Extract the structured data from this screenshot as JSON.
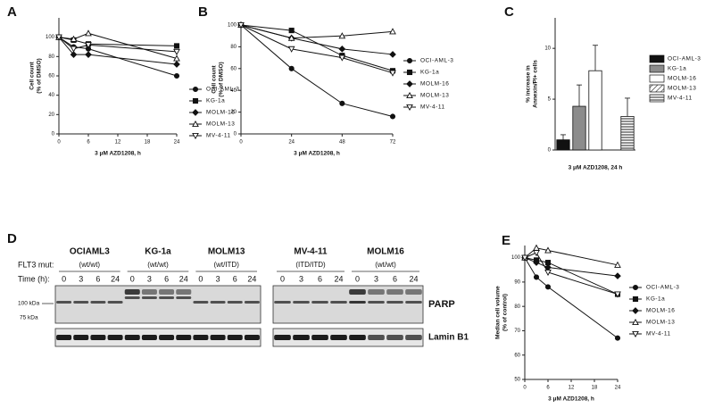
{
  "chart_data": [
    {
      "type": "line",
      "panel": "A",
      "ylabel": [
        "Cell count",
        "(% of DMSO)"
      ],
      "xlabel": "3 μM AZD1208, h",
      "x": [
        0,
        3,
        6,
        24
      ],
      "xlim": [
        0,
        24
      ],
      "xticks": [
        0,
        6,
        12,
        18,
        24
      ],
      "ylim": [
        0,
        120
      ],
      "yticks": [
        0,
        20,
        40,
        60,
        80,
        100
      ],
      "series": [
        {
          "name": "OCI-AML-3",
          "color": "#111111",
          "marker": "circle",
          "marker_fill": "#111111",
          "values": [
            100,
            90,
            88,
            60
          ]
        },
        {
          "name": "KG-1a",
          "color": "#111111",
          "marker": "square",
          "marker_fill": "#111111",
          "values": [
            100,
            97,
            93,
            91
          ]
        },
        {
          "name": "MOLM-16",
          "color": "#111111",
          "marker": "diamond",
          "marker_fill": "#111111",
          "values": [
            100,
            82,
            82,
            72
          ]
        },
        {
          "name": "MOLM-13",
          "color": "#111111",
          "marker": "triangle-up",
          "marker_fill": "#ffffff",
          "values": [
            100,
            98,
            104,
            78
          ]
        },
        {
          "name": "MV-4-11",
          "color": "#111111",
          "marker": "triangle-down",
          "marker_fill": "#ffffff",
          "values": [
            100,
            88,
            92,
            85
          ]
        }
      ]
    },
    {
      "type": "line",
      "panel": "B",
      "ylabel": [
        "Cell count",
        "(% of DMSO)"
      ],
      "xlabel": "3 μM AZD1208, h",
      "x": [
        0,
        24,
        48,
        72
      ],
      "xlim": [
        0,
        72
      ],
      "xticks": [
        0,
        24,
        48,
        72
      ],
      "ylim": [
        0,
        100
      ],
      "yticks": [
        0,
        20,
        40,
        60,
        80,
        100
      ],
      "series": [
        {
          "name": "OCI-AML-3",
          "color": "#111111",
          "marker": "circle",
          "marker_fill": "#111111",
          "values": [
            100,
            60,
            28,
            16
          ]
        },
        {
          "name": "KG-1a",
          "color": "#111111",
          "marker": "square",
          "marker_fill": "#111111",
          "values": [
            100,
            95,
            72,
            58
          ]
        },
        {
          "name": "MOLM-16",
          "color": "#111111",
          "marker": "diamond",
          "marker_fill": "#111111",
          "values": [
            100,
            88,
            78,
            73
          ]
        },
        {
          "name": "MOLM-13",
          "color": "#111111",
          "marker": "triangle-up",
          "marker_fill": "#ffffff",
          "values": [
            100,
            88,
            90,
            94
          ]
        },
        {
          "name": "MV-4-11",
          "color": "#111111",
          "marker": "triangle-down",
          "marker_fill": "#ffffff",
          "values": [
            100,
            78,
            70,
            56
          ]
        }
      ]
    },
    {
      "type": "bar",
      "panel": "C",
      "ylabel": [
        "% increase in",
        "Annexin/PI+ cells"
      ],
      "xlabel": "3 μM AZD1208, 24 h",
      "categories": [
        "OCI-AML-3",
        "KG-1a",
        "MOLM-16",
        "MOLM-13",
        "MV-4-11"
      ],
      "values": [
        1,
        4.3,
        7.8,
        0,
        3.3
      ],
      "errors": [
        0.5,
        2.1,
        2.5,
        null,
        1.8
      ],
      "colors": [
        "#111111",
        "#8c8c8c",
        "#ffffff",
        "#ffffff",
        "#ffffff"
      ],
      "patterns": [
        null,
        null,
        null,
        "diagonal",
        "horizontal"
      ],
      "ylim": [
        0,
        13
      ],
      "yticks": [
        0,
        5,
        10
      ]
    },
    {
      "type": "line",
      "panel": "E",
      "ylabel": [
        "Median cell volume",
        "(% of control)"
      ],
      "xlabel": "3 μM AZD1208, h",
      "x": [
        0,
        3,
        6,
        24
      ],
      "xlim": [
        0,
        24
      ],
      "xticks": [
        0,
        6,
        12,
        18,
        24
      ],
      "ylim": [
        50,
        105
      ],
      "yticks": [
        50,
        60,
        70,
        80,
        90,
        100
      ],
      "series": [
        {
          "name": "OCI-AML-3",
          "color": "#111111",
          "marker": "circle",
          "marker_fill": "#111111",
          "values": [
            100,
            92,
            88,
            67
          ]
        },
        {
          "name": "KG-1a",
          "color": "#111111",
          "marker": "square",
          "marker_fill": "#111111",
          "values": [
            100,
            99,
            98,
            85
          ]
        },
        {
          "name": "MOLM-16",
          "color": "#111111",
          "marker": "diamond",
          "marker_fill": "#111111",
          "values": [
            100,
            98,
            96,
            92.5
          ]
        },
        {
          "name": "MOLM-13",
          "color": "#111111",
          "marker": "triangle-up",
          "marker_fill": "#ffffff",
          "values": [
            100,
            104,
            103,
            97
          ]
        },
        {
          "name": "MV-4-11",
          "color": "#111111",
          "marker": "triangle-down",
          "marker_fill": "#ffffff",
          "values": [
            100,
            102,
            94,
            85
          ]
        }
      ]
    }
  ],
  "blot": {
    "panel": "D",
    "flt3_label": "FLT3 mut:",
    "time_label": "Time (h):",
    "groups": [
      {
        "name": "OCIAML3",
        "genotype": "(wt/wt)",
        "times": [
          "0",
          "3",
          "6",
          "24"
        ]
      },
      {
        "name": "KG-1a",
        "genotype": "(wt/wt)",
        "times": [
          "0",
          "3",
          "6",
          "24"
        ]
      },
      {
        "name": "MOLM13",
        "genotype": "(wt/ITD)",
        "times": [
          "0",
          "3",
          "6",
          "24"
        ]
      },
      {
        "name": "MV-4-11",
        "genotype": "(ITD/ITD)",
        "times": [
          "0",
          "3",
          "6",
          "24"
        ]
      },
      {
        "name": "MOLM16",
        "genotype": "(wt/wt)",
        "times": [
          "0",
          "3",
          "6",
          "24"
        ]
      }
    ],
    "markers": [
      "100 kDa",
      "75 kDa"
    ],
    "proteins": [
      "PARP",
      "Lamin B1"
    ]
  }
}
